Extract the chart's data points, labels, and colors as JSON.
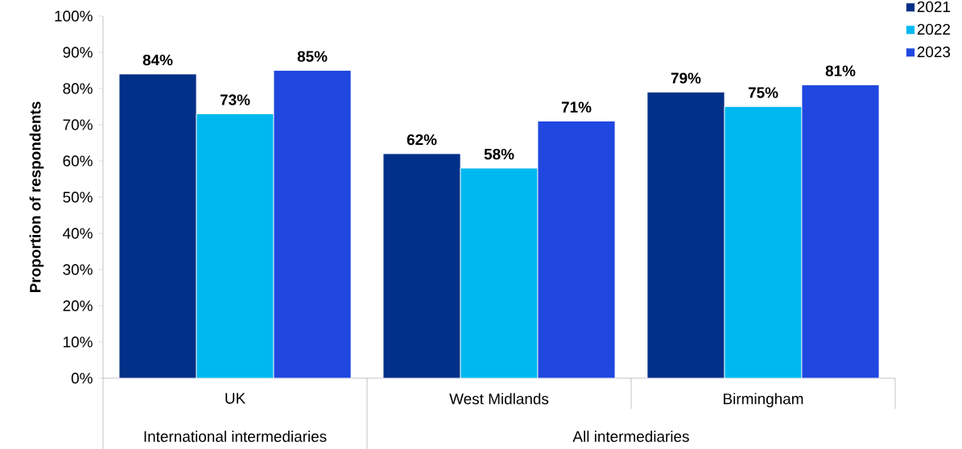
{
  "chart_data": {
    "type": "bar",
    "ylabel": "Proportion of respondents",
    "categories": [
      "UK",
      "West Midlands",
      "Birmingham"
    ],
    "series": [
      {
        "name": "2021",
        "color": "#003087",
        "values": [
          84,
          62,
          79
        ],
        "value_labels": [
          "84%",
          "62%",
          "79%"
        ]
      },
      {
        "name": "2022",
        "color": "#00b8f0",
        "values": [
          73,
          58,
          75
        ],
        "value_labels": [
          "73%",
          "58%",
          "75%"
        ]
      },
      {
        "name": "2023",
        "color": "#2047e0",
        "values": [
          85,
          71,
          81
        ],
        "value_labels": [
          "85%",
          "71%",
          "81%"
        ]
      }
    ],
    "ylim": [
      0,
      100
    ],
    "yticks": [
      {
        "value": 0,
        "label": "0%"
      },
      {
        "value": 10,
        "label": "10%"
      },
      {
        "value": 20,
        "label": "20%"
      },
      {
        "value": 30,
        "label": "30%"
      },
      {
        "value": 40,
        "label": "40%"
      },
      {
        "value": 50,
        "label": "50%"
      },
      {
        "value": 60,
        "label": "60%"
      },
      {
        "value": 70,
        "label": "70%"
      },
      {
        "value": 80,
        "label": "80%"
      },
      {
        "value": 90,
        "label": "90%"
      },
      {
        "value": 100,
        "label": "100%"
      }
    ],
    "legend": "top right",
    "annotations": [
      "International intermediaries",
      "All intermediaries"
    ]
  }
}
